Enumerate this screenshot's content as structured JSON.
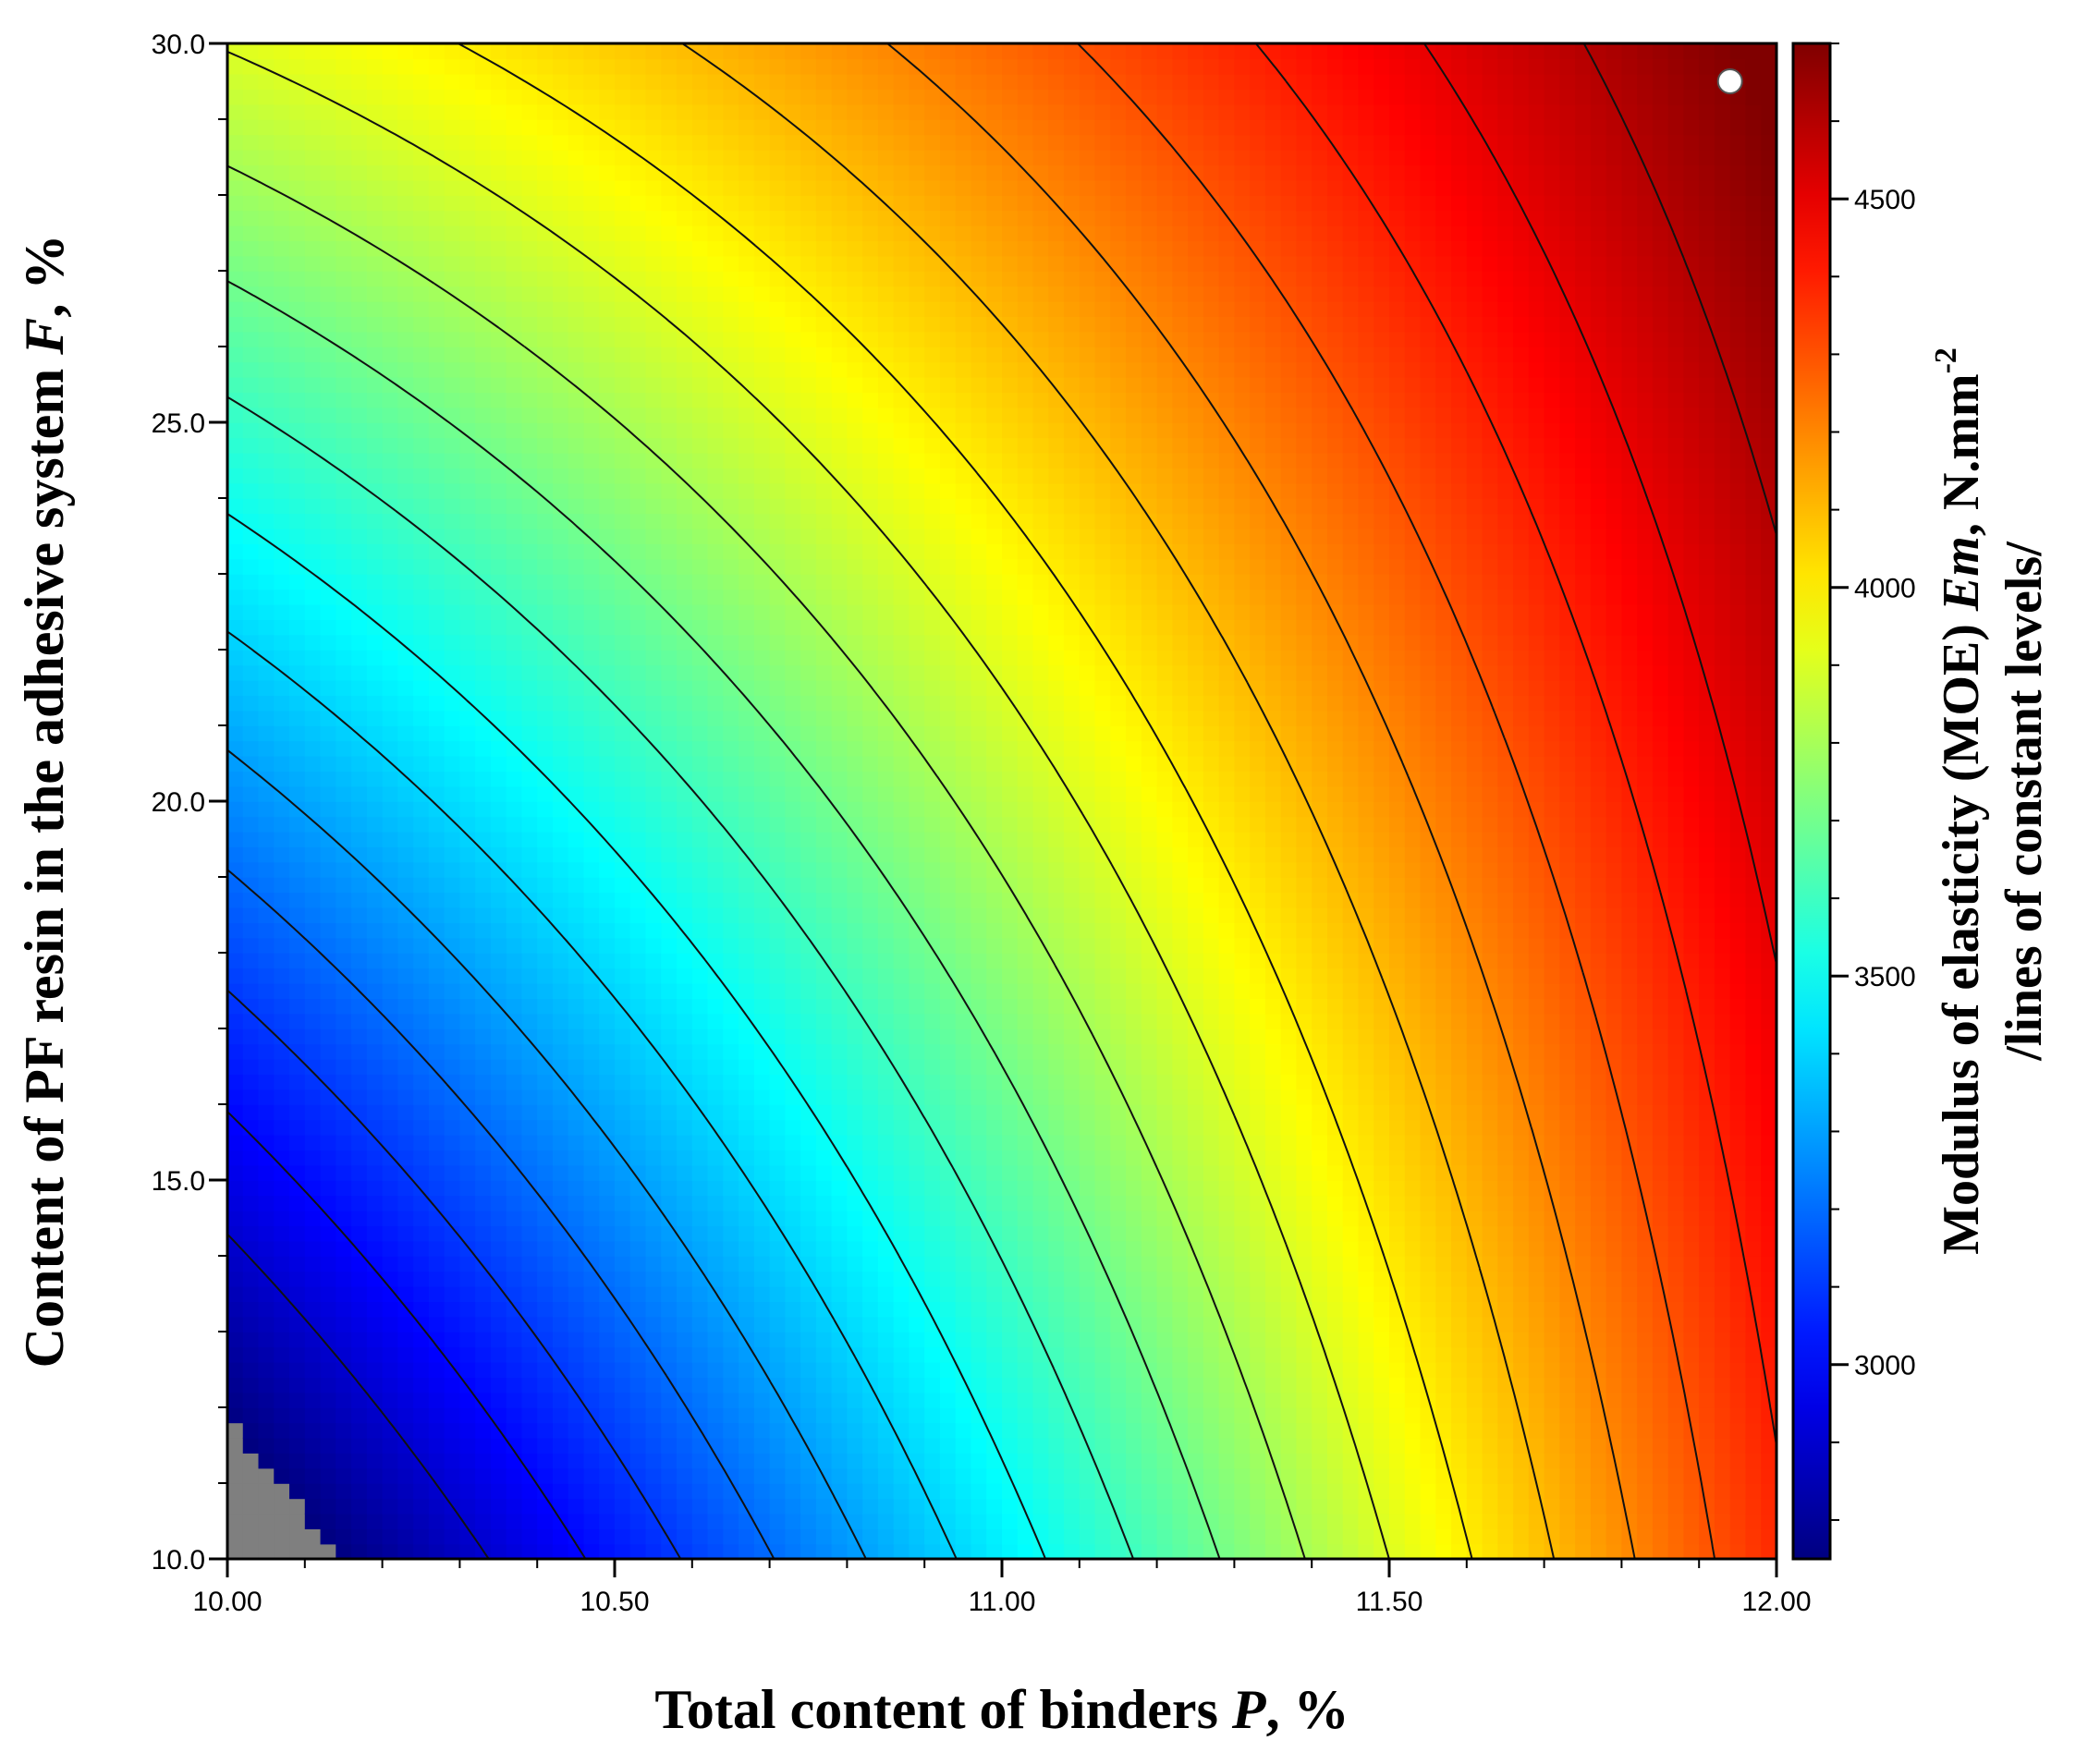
{
  "chart_data": {
    "type": "heatmap",
    "subtype": "contour",
    "title": "",
    "xlabel": {
      "prefix": "Total content of binders ",
      "var": "P",
      "suffix": ", %"
    },
    "ylabel": {
      "prefix": "Content of PF resin in the adhesive system ",
      "var": "F",
      "suffix": ", %"
    },
    "colorbar_label": {
      "line1_prefix": "Modulus of elasticity (MOE) ",
      "line1_var": "Em",
      "line1_suffix": ", N.mm",
      "line1_sup": "-2",
      "line2": "/lines of constant levels/"
    },
    "xlim": [
      10.0,
      12.0
    ],
    "ylim": [
      10.0,
      30.0
    ],
    "x_ticks": [
      10.0,
      10.5,
      11.0,
      11.5,
      12.0
    ],
    "x_tick_labels": [
      "10.00",
      "10.50",
      "11.00",
      "11.50",
      "12.00"
    ],
    "y_ticks": [
      10.0,
      15.0,
      20.0,
      25.0,
      30.0
    ],
    "y_tick_labels": [
      "10.0",
      "15.0",
      "20.0",
      "25.0",
      "30.0"
    ],
    "colorbar_range": [
      2750,
      4700
    ],
    "colorbar_ticks": [
      3000,
      3500,
      4000,
      4500
    ],
    "colorbar_tick_labels": [
      "3000",
      "3500",
      "4000",
      "4500"
    ],
    "colormap": "jet",
    "below_range_color": "#7f7f7f",
    "contour_levels": [
      2900,
      3000,
      3100,
      3200,
      3300,
      3400,
      3500,
      3600,
      3700,
      3800,
      3900,
      4000,
      4100,
      4200,
      4300,
      4400,
      4500,
      4600
    ],
    "grid": false,
    "surface_samples": [
      {
        "x": 10.0,
        "y": 10.0,
        "z": 2720
      },
      {
        "x": 10.42,
        "y": 10.0,
        "z": 2900
      },
      {
        "x": 11.0,
        "y": 10.0,
        "z": 3460
      },
      {
        "x": 11.55,
        "y": 10.0,
        "z": 3980
      },
      {
        "x": 12.0,
        "y": 10.0,
        "z": 4350
      },
      {
        "x": 10.0,
        "y": 15.0,
        "z": 2880
      },
      {
        "x": 10.0,
        "y": 20.0,
        "z": 3240
      },
      {
        "x": 10.0,
        "y": 25.0,
        "z": 3620
      },
      {
        "x": 10.0,
        "y": 30.0,
        "z": 3900
      },
      {
        "x": 11.0,
        "y": 20.0,
        "z": 3860
      },
      {
        "x": 11.0,
        "y": 30.0,
        "z": 4250
      },
      {
        "x": 12.0,
        "y": 20.0,
        "z": 4550
      },
      {
        "x": 12.0,
        "y": 30.0,
        "z": 4720
      }
    ],
    "optimum_marker": {
      "x": 11.94,
      "y": 29.5
    }
  }
}
